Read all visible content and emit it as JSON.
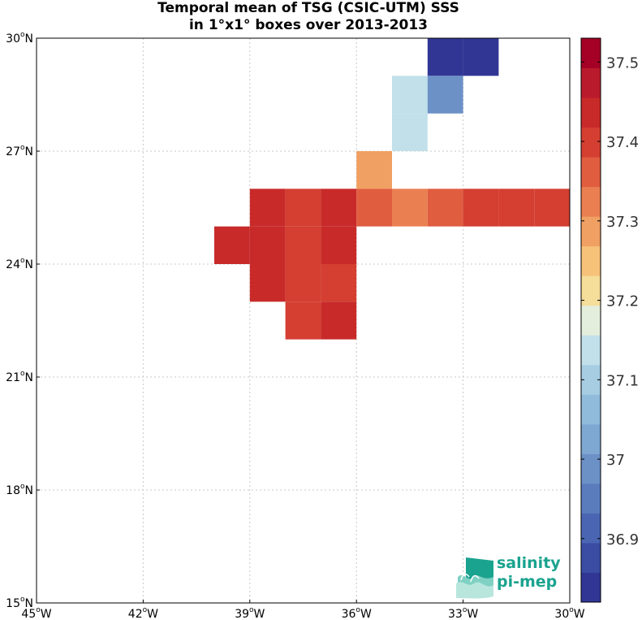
{
  "title": {
    "line1": "Temporal mean of TSG (CSIC-UTM) SSS",
    "line2": "in 1°x1° boxes over 2013-2013"
  },
  "logo": {
    "line1": "salinity",
    "line2": "pi-mep"
  },
  "chart_data": {
    "type": "heatmap",
    "title": "Temporal mean of TSG (CSIC-UTM) SSS in 1°x1° boxes over 2013-2013",
    "xlim_lon": [
      -45,
      -30
    ],
    "ylim_lat": [
      15,
      30
    ],
    "grid": true,
    "x_ticks": [
      {
        "value": -45,
        "deg": "45",
        "hemi": "W"
      },
      {
        "value": -42,
        "deg": "42",
        "hemi": "W"
      },
      {
        "value": -39,
        "deg": "39",
        "hemi": "W"
      },
      {
        "value": -36,
        "deg": "36",
        "hemi": "W"
      },
      {
        "value": -33,
        "deg": "33",
        "hemi": "W"
      },
      {
        "value": -30,
        "deg": "30",
        "hemi": "W"
      }
    ],
    "y_ticks": [
      {
        "value": 15,
        "deg": "15",
        "hemi": "N"
      },
      {
        "value": 18,
        "deg": "18",
        "hemi": "N"
      },
      {
        "value": 21,
        "deg": "21",
        "hemi": "N"
      },
      {
        "value": 24,
        "deg": "24",
        "hemi": "N"
      },
      {
        "value": 27,
        "deg": "27",
        "hemi": "N"
      },
      {
        "value": 30,
        "deg": "30",
        "hemi": "N"
      }
    ],
    "colorbar": {
      "min": 36.82,
      "max": 37.53,
      "ticks": [
        "36.9",
        "37",
        "37.1",
        "37.2",
        "37.3",
        "37.4",
        "37.5"
      ],
      "colors": [
        "#313695",
        "#3a4da3",
        "#4a66b3",
        "#5a7cbd",
        "#6c91c7",
        "#7ea7d2",
        "#90bbdb",
        "#a7cde3",
        "#c1e0ea",
        "#e3eedd",
        "#f5dd9a",
        "#f6c27a",
        "#f0a062",
        "#ea7f52",
        "#e05d40",
        "#d43f31",
        "#c82a2a",
        "#ba1b2c",
        "#a50026"
      ]
    },
    "cells": [
      {
        "lon": -34,
        "lat": 29,
        "sss": 36.85
      },
      {
        "lon": -33,
        "lat": 29,
        "sss": 36.85
      },
      {
        "lon": -35,
        "lat": 28,
        "sss": 37.12
      },
      {
        "lon": -34,
        "lat": 28,
        "sss": 36.97
      },
      {
        "lon": -35,
        "lat": 27,
        "sss": 37.12
      },
      {
        "lon": -36,
        "lat": 26,
        "sss": 37.3
      },
      {
        "lon": -39,
        "lat": 25,
        "sss": 37.45
      },
      {
        "lon": -38,
        "lat": 25,
        "sss": 37.41
      },
      {
        "lon": -37,
        "lat": 25,
        "sss": 37.45
      },
      {
        "lon": -36,
        "lat": 25,
        "sss": 37.37
      },
      {
        "lon": -35,
        "lat": 25,
        "sss": 37.33
      },
      {
        "lon": -34,
        "lat": 25,
        "sss": 37.37
      },
      {
        "lon": -33,
        "lat": 25,
        "sss": 37.41
      },
      {
        "lon": -32,
        "lat": 25,
        "sss": 37.41
      },
      {
        "lon": -31,
        "lat": 25,
        "sss": 37.41
      },
      {
        "lon": -40,
        "lat": 24,
        "sss": 37.45
      },
      {
        "lon": -39,
        "lat": 24,
        "sss": 37.45
      },
      {
        "lon": -38,
        "lat": 24,
        "sss": 37.41
      },
      {
        "lon": -37,
        "lat": 24,
        "sss": 37.45
      },
      {
        "lon": -39,
        "lat": 23,
        "sss": 37.45
      },
      {
        "lon": -38,
        "lat": 23,
        "sss": 37.41
      },
      {
        "lon": -37,
        "lat": 23,
        "sss": 37.41
      },
      {
        "lon": -38,
        "lat": 22,
        "sss": 37.41
      },
      {
        "lon": -37,
        "lat": 22,
        "sss": 37.45
      }
    ]
  }
}
